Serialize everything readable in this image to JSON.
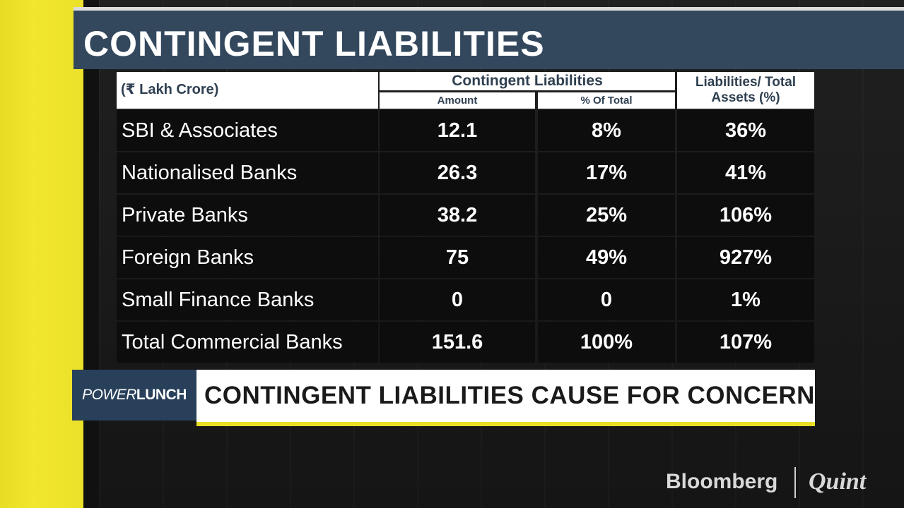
{
  "title": "CONTINGENT LIABILITIES",
  "table": {
    "unit_header": "(₹ Lakh Crore)",
    "group_header": "Contingent Liabilities",
    "sub_header_amount": "Amount",
    "sub_header_pct": "% Of Total",
    "ratio_header": "Liabilities/ Total Assets (%)",
    "rows": [
      {
        "name": "SBI & Associates",
        "amount": "12.1",
        "pct": "8%",
        "ratio": "36%"
      },
      {
        "name": "Nationalised Banks",
        "amount": "26.3",
        "pct": "17%",
        "ratio": "41%"
      },
      {
        "name": "Private Banks",
        "amount": "38.2",
        "pct": "25%",
        "ratio": "106%"
      },
      {
        "name": "Foreign Banks",
        "amount": "75",
        "pct": "49%",
        "ratio": "927%"
      },
      {
        "name": "Small Finance Banks",
        "amount": "0",
        "pct": "0",
        "ratio": "1%"
      },
      {
        "name": "Total Commercial Banks",
        "amount": "151.6",
        "pct": "100%",
        "ratio": "107%"
      }
    ]
  },
  "ticker": {
    "show_part1": "POWER",
    "show_part2": "LUNCH",
    "headline": "CONTINGENT LIABILITIES CAUSE FOR CONCERN"
  },
  "brand": {
    "part1": "Bloomberg",
    "part2": "Quint"
  },
  "colors": {
    "accent_yellow": "#e9dc24",
    "title_bar": "#33485d",
    "header_text": "#2e3f50"
  }
}
